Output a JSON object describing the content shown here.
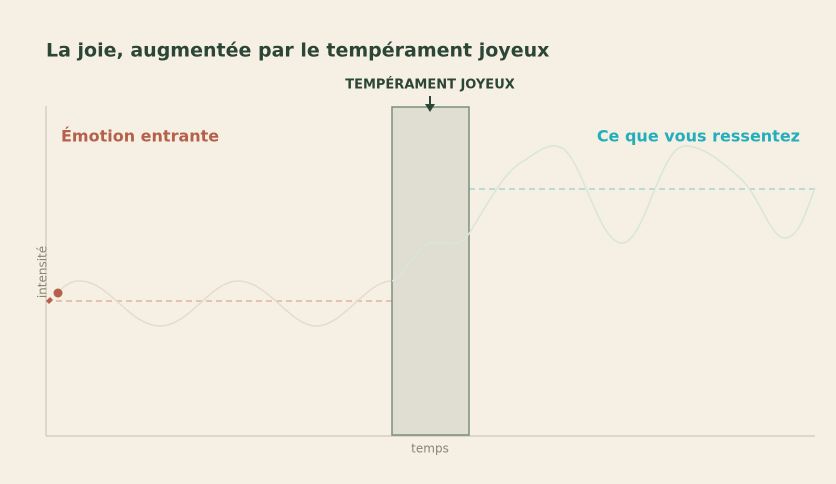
{
  "title": "La joie, augmentée par le tempérament joyeux",
  "filter_label": "TEMPÉRAMENT JOYEUX",
  "input_label": "Émotion entrante",
  "output_label": "Ce que vous ressentez",
  "y_axis_label": "intensité",
  "x_axis_label": "temps"
}
